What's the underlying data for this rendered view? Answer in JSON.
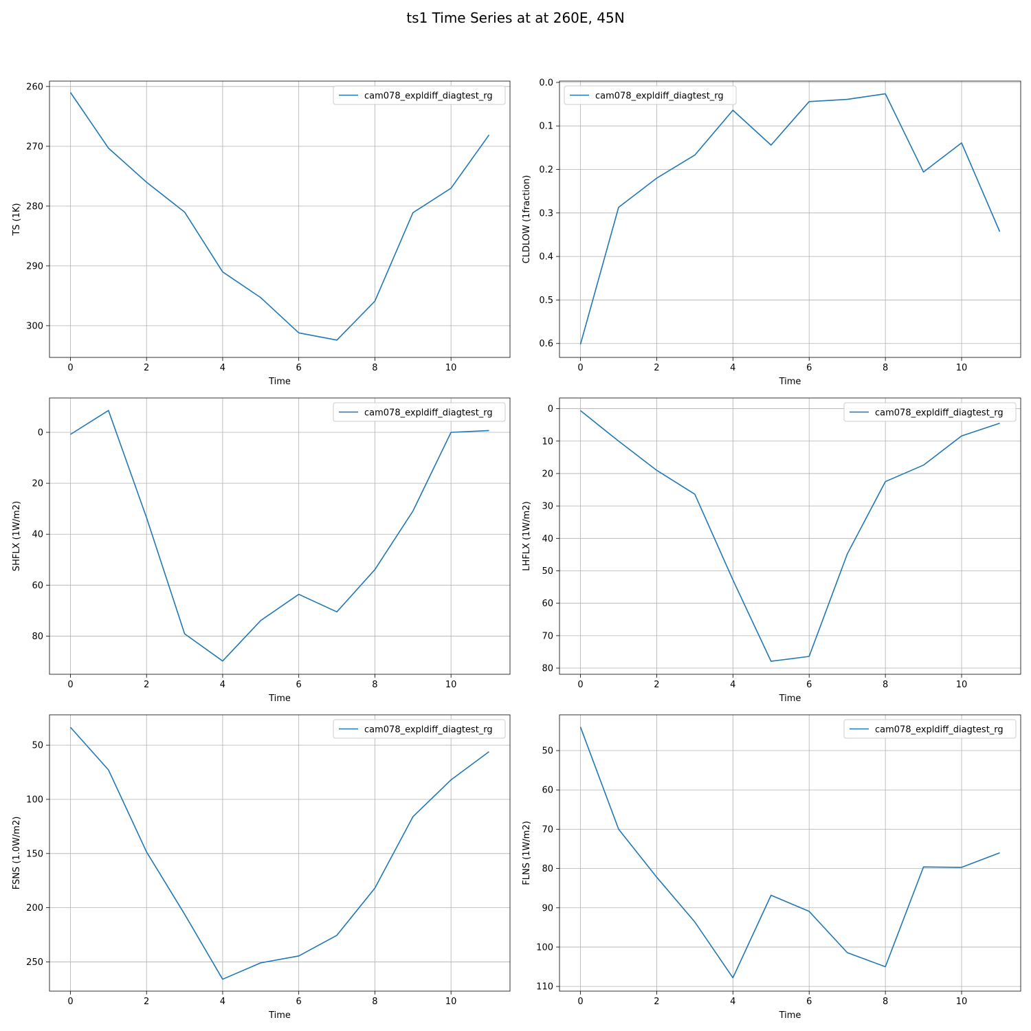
{
  "figure": {
    "title": "ts1 Time Series at at 260E, 45N",
    "line_color": "#1f77b4"
  },
  "chart_data": [
    {
      "type": "line",
      "xlabel": "Time",
      "ylabel": "TS (1K)",
      "y_inverted": true,
      "xlim": [
        -0.55,
        11.55
      ],
      "ylim": [
        305.3,
        259.1
      ],
      "xticks": [
        0,
        2,
        4,
        6,
        8,
        10
      ],
      "yticks": [
        260,
        270,
        280,
        290,
        300
      ],
      "grid": true,
      "legend_position": "upper right",
      "series": [
        {
          "name": "cam078_expldiff_diagtest_rg",
          "x": [
            0,
            1,
            2,
            3,
            4,
            5,
            6,
            7,
            8,
            9,
            10,
            11
          ],
          "values": [
            261.0,
            270.3,
            276.0,
            281.0,
            291.0,
            295.3,
            301.2,
            302.4,
            295.9,
            281.1,
            277.0,
            268.1
          ]
        }
      ]
    },
    {
      "type": "line",
      "xlabel": "Time",
      "ylabel": "CLDLOW (1fraction)",
      "y_inverted": true,
      "xlim": [
        -0.55,
        11.55
      ],
      "ylim": [
        0.632,
        -0.003
      ],
      "xticks": [
        0,
        2,
        4,
        6,
        8,
        10
      ],
      "yticks": [
        0.0,
        0.1,
        0.2,
        0.3,
        0.4,
        0.5,
        0.6
      ],
      "ytick_labels": [
        "0.0",
        "0.1",
        "0.2",
        "0.3",
        "0.4",
        "0.5",
        "0.6"
      ],
      "grid": true,
      "legend_position": "upper left",
      "series": [
        {
          "name": "cam078_expldiff_diagtest_rg",
          "x": [
            0,
            1,
            2,
            3,
            4,
            5,
            6,
            7,
            8,
            9,
            10,
            11
          ],
          "values": [
            0.602,
            0.287,
            0.22,
            0.167,
            0.064,
            0.144,
            0.044,
            0.039,
            0.026,
            0.206,
            0.139,
            0.343
          ]
        }
      ]
    },
    {
      "type": "line",
      "xlabel": "Time",
      "ylabel": "SHFLX (1W/m2)",
      "y_inverted": true,
      "xlim": [
        -0.55,
        11.55
      ],
      "ylim": [
        95.0,
        -13.5
      ],
      "xticks": [
        0,
        2,
        4,
        6,
        8,
        10
      ],
      "yticks": [
        0,
        20,
        40,
        60,
        80
      ],
      "grid": true,
      "legend_position": "upper right",
      "series": [
        {
          "name": "cam078_expldiff_diagtest_rg",
          "x": [
            0,
            1,
            2,
            3,
            4,
            5,
            6,
            7,
            8,
            9,
            10,
            11
          ],
          "values": [
            0.8,
            -8.6,
            33.5,
            79.1,
            89.8,
            73.9,
            63.6,
            70.5,
            53.9,
            30.9,
            0.0,
            -0.7
          ]
        }
      ]
    },
    {
      "type": "line",
      "xlabel": "Time",
      "ylabel": "LHFLX (1W/m2)",
      "y_inverted": true,
      "xlim": [
        -0.55,
        11.55
      ],
      "ylim": [
        81.9,
        -3.3
      ],
      "xticks": [
        0,
        2,
        4,
        6,
        8,
        10
      ],
      "yticks": [
        0,
        10,
        20,
        30,
        40,
        50,
        60,
        70,
        80
      ],
      "grid": true,
      "legend_position": "upper right",
      "series": [
        {
          "name": "cam078_expldiff_diagtest_rg",
          "x": [
            0,
            1,
            2,
            3,
            4,
            5,
            6,
            7,
            8,
            9,
            10,
            11
          ],
          "values": [
            0.6,
            10.0,
            19.0,
            26.4,
            52.8,
            77.9,
            76.4,
            44.8,
            22.5,
            17.4,
            8.4,
            4.5
          ]
        }
      ]
    },
    {
      "type": "line",
      "xlabel": "Time",
      "ylabel": "FSNS (1.0W/m2)",
      "y_inverted": true,
      "xlim": [
        -0.55,
        11.55
      ],
      "ylim": [
        277.0,
        22.0
      ],
      "xticks": [
        0,
        2,
        4,
        6,
        8,
        10
      ],
      "yticks": [
        50,
        100,
        150,
        200,
        250
      ],
      "grid": true,
      "legend_position": "upper right",
      "series": [
        {
          "name": "cam078_expldiff_diagtest_rg",
          "x": [
            0,
            1,
            2,
            3,
            4,
            5,
            6,
            7,
            8,
            9,
            10,
            11
          ],
          "values": [
            33.5,
            72.8,
            148.5,
            206.0,
            266.0,
            250.9,
            244.5,
            225.5,
            181.9,
            116.0,
            82.0,
            56.0
          ]
        }
      ]
    },
    {
      "type": "line",
      "xlabel": "Time",
      "ylabel": "FLNS (1W/m2)",
      "y_inverted": true,
      "xlim": [
        -0.55,
        11.55
      ],
      "ylim": [
        111.2,
        40.9
      ],
      "xticks": [
        0,
        2,
        4,
        6,
        8,
        10
      ],
      "yticks": [
        50,
        60,
        70,
        80,
        90,
        100,
        110
      ],
      "grid": true,
      "legend_position": "upper right",
      "series": [
        {
          "name": "cam078_expldiff_diagtest_rg",
          "x": [
            0,
            1,
            2,
            3,
            4,
            5,
            6,
            7,
            8,
            9,
            10,
            11
          ],
          "values": [
            44.0,
            70.0,
            82.2,
            93.6,
            107.8,
            86.8,
            90.9,
            101.4,
            105.0,
            79.6,
            79.7,
            76.0
          ]
        }
      ]
    }
  ]
}
